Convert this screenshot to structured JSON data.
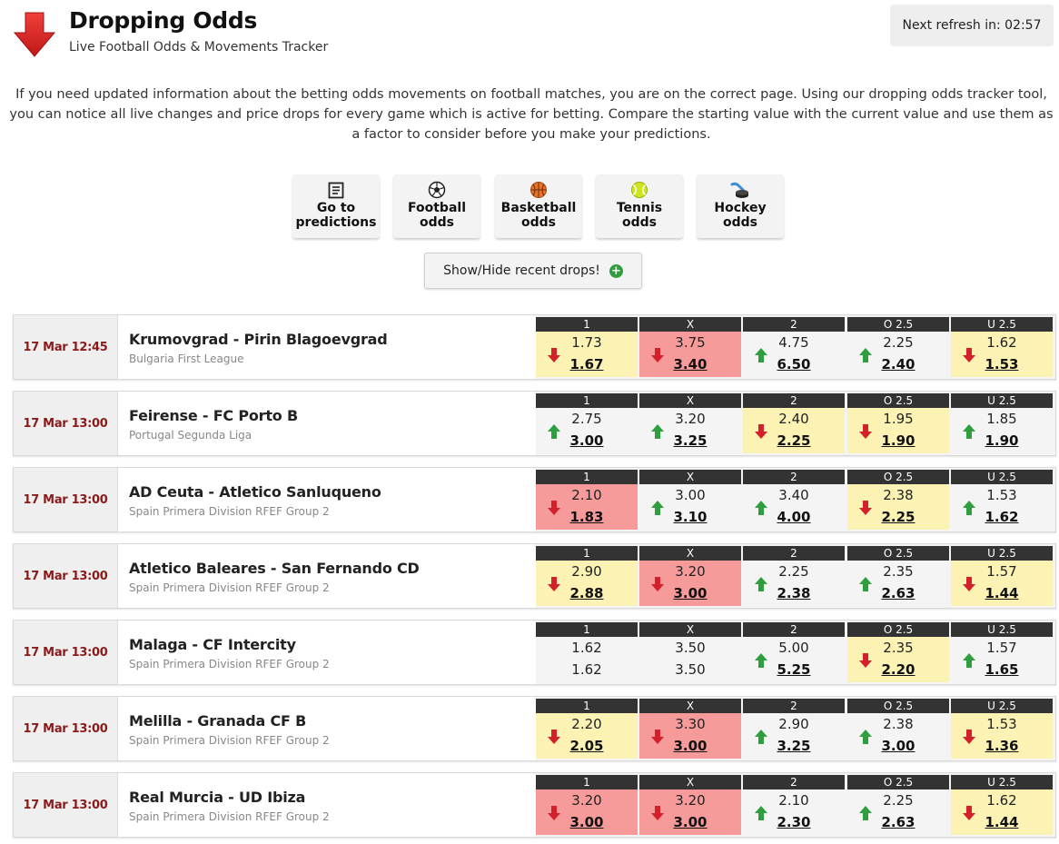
{
  "header": {
    "title": "Dropping Odds",
    "subtitle": "Live Football Odds & Movements Tracker",
    "refresh_label": "Next refresh in: 02:57"
  },
  "intro": "If you need updated information about the betting odds movements on football matches, you are on the correct page. Using our dropping odds tracker tool, you can notice all live changes and price drops for every game which is active for betting. Compare the starting value with the current value and use them as a factor to consider before you make your predictions.",
  "nav": [
    {
      "line1": "Go to",
      "line2": "predictions",
      "icon": "document-icon"
    },
    {
      "line1": "Football",
      "line2": "odds",
      "icon": "football-icon"
    },
    {
      "line1": "Basketball",
      "line2": "odds",
      "icon": "basketball-icon"
    },
    {
      "line1": "Tennis",
      "line2": "odds",
      "icon": "tennis-ball-icon"
    },
    {
      "line1": "Hockey",
      "line2": "odds",
      "icon": "hockey-puck-icon"
    }
  ],
  "toggle_label": "Show/Hide recent drops!",
  "colors": {
    "drop_red": "#f79a9a",
    "drop_yellow": "#fbf2b4",
    "arrow_down": "#d3202a",
    "arrow_up": "#2e9e3e",
    "time": "#8b1a1a"
  },
  "odds_headers": [
    "1",
    "X",
    "2",
    "O 2.5",
    "U 2.5"
  ],
  "matches": [
    {
      "time": "17 Mar 12:45",
      "teams": "Krumovgrad - Pirin Blagoevgrad",
      "league": "Bulgaria First League",
      "odds": [
        {
          "open": "1.73",
          "current": "1.67",
          "dir": "down",
          "hl": "yellow"
        },
        {
          "open": "3.75",
          "current": "3.40",
          "dir": "down",
          "hl": "red"
        },
        {
          "open": "4.75",
          "current": "6.50",
          "dir": "up",
          "hl": ""
        },
        {
          "open": "2.25",
          "current": "2.40",
          "dir": "up",
          "hl": ""
        },
        {
          "open": "1.62",
          "current": "1.53",
          "dir": "down",
          "hl": "yellow"
        }
      ]
    },
    {
      "time": "17 Mar 13:00",
      "teams": "Feirense - FC Porto B",
      "league": "Portugal Segunda Liga",
      "odds": [
        {
          "open": "2.75",
          "current": "3.00",
          "dir": "up",
          "hl": ""
        },
        {
          "open": "3.20",
          "current": "3.25",
          "dir": "up",
          "hl": ""
        },
        {
          "open": "2.40",
          "current": "2.25",
          "dir": "down",
          "hl": "yellow"
        },
        {
          "open": "1.95",
          "current": "1.90",
          "dir": "down",
          "hl": "yellow"
        },
        {
          "open": "1.85",
          "current": "1.90",
          "dir": "up",
          "hl": ""
        }
      ]
    },
    {
      "time": "17 Mar 13:00",
      "teams": "AD Ceuta - Atletico Sanluqueno",
      "league": "Spain Primera Division RFEF Group 2",
      "odds": [
        {
          "open": "2.10",
          "current": "1.83",
          "dir": "down",
          "hl": "red"
        },
        {
          "open": "3.00",
          "current": "3.10",
          "dir": "up",
          "hl": ""
        },
        {
          "open": "3.40",
          "current": "4.00",
          "dir": "up",
          "hl": ""
        },
        {
          "open": "2.38",
          "current": "2.25",
          "dir": "down",
          "hl": "yellow"
        },
        {
          "open": "1.53",
          "current": "1.62",
          "dir": "up",
          "hl": ""
        }
      ]
    },
    {
      "time": "17 Mar 13:00",
      "teams": "Atletico Baleares - San Fernando CD",
      "league": "Spain Primera Division RFEF Group 2",
      "odds": [
        {
          "open": "2.90",
          "current": "2.88",
          "dir": "down",
          "hl": "yellow"
        },
        {
          "open": "3.20",
          "current": "3.00",
          "dir": "down",
          "hl": "red"
        },
        {
          "open": "2.25",
          "current": "2.38",
          "dir": "up",
          "hl": ""
        },
        {
          "open": "2.35",
          "current": "2.63",
          "dir": "up",
          "hl": ""
        },
        {
          "open": "1.57",
          "current": "1.44",
          "dir": "down",
          "hl": "yellow"
        }
      ]
    },
    {
      "time": "17 Mar 13:00",
      "teams": "Malaga - CF Intercity",
      "league": "Spain Primera Division RFEF Group 2",
      "odds": [
        {
          "open": "1.62",
          "current": "1.62",
          "dir": "none",
          "hl": ""
        },
        {
          "open": "3.50",
          "current": "3.50",
          "dir": "none",
          "hl": ""
        },
        {
          "open": "5.00",
          "current": "5.25",
          "dir": "up",
          "hl": ""
        },
        {
          "open": "2.35",
          "current": "2.20",
          "dir": "down",
          "hl": "yellow"
        },
        {
          "open": "1.57",
          "current": "1.65",
          "dir": "up",
          "hl": ""
        }
      ]
    },
    {
      "time": "17 Mar 13:00",
      "teams": "Melilla - Granada CF B",
      "league": "Spain Primera Division RFEF Group 2",
      "odds": [
        {
          "open": "2.20",
          "current": "2.05",
          "dir": "down",
          "hl": "yellow"
        },
        {
          "open": "3.30",
          "current": "3.00",
          "dir": "down",
          "hl": "red"
        },
        {
          "open": "2.90",
          "current": "3.25",
          "dir": "up",
          "hl": ""
        },
        {
          "open": "2.38",
          "current": "3.00",
          "dir": "up",
          "hl": ""
        },
        {
          "open": "1.53",
          "current": "1.36",
          "dir": "down",
          "hl": "yellow"
        }
      ]
    },
    {
      "time": "17 Mar 13:00",
      "teams": "Real Murcia - UD Ibiza",
      "league": "Spain Primera Division RFEF Group 2",
      "odds": [
        {
          "open": "3.20",
          "current": "3.00",
          "dir": "down",
          "hl": "red"
        },
        {
          "open": "3.20",
          "current": "3.00",
          "dir": "down",
          "hl": "red"
        },
        {
          "open": "2.10",
          "current": "2.30",
          "dir": "up",
          "hl": ""
        },
        {
          "open": "2.25",
          "current": "2.63",
          "dir": "up",
          "hl": ""
        },
        {
          "open": "1.62",
          "current": "1.44",
          "dir": "down",
          "hl": "yellow"
        }
      ]
    }
  ]
}
